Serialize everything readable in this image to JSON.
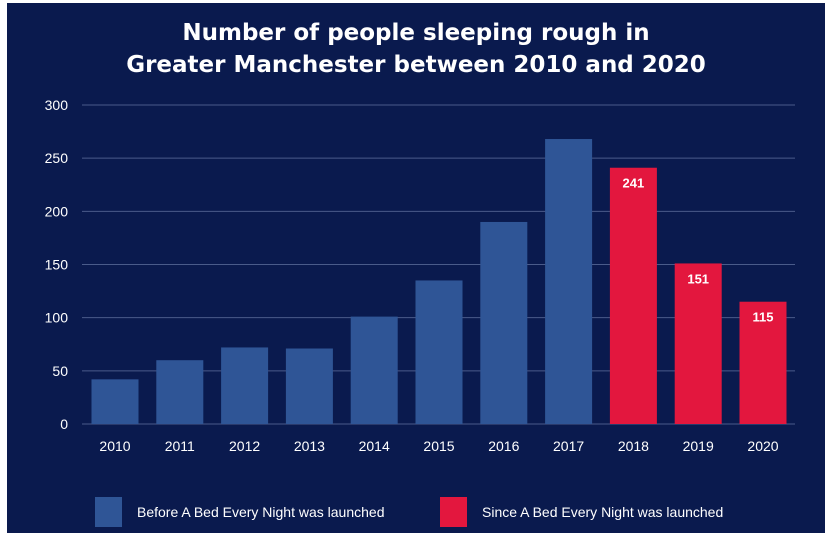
{
  "chart_data": {
    "type": "bar",
    "title_lines": [
      "Number of people sleeping rough in",
      "Greater Manchester between 2010 and 2020"
    ],
    "categories": [
      "2010",
      "2011",
      "2012",
      "2013",
      "2014",
      "2015",
      "2016",
      "2017",
      "2018",
      "2019",
      "2020"
    ],
    "values": [
      42,
      60,
      72,
      71,
      101,
      135,
      190,
      268,
      241,
      151,
      115
    ],
    "data_labels": [
      "",
      "",
      "",
      "",
      "",
      "",
      "",
      "",
      "241",
      "151",
      "115"
    ],
    "bar_groups": [
      "before",
      "before",
      "before",
      "before",
      "before",
      "before",
      "before",
      "before",
      "since",
      "since",
      "since"
    ],
    "ylim": [
      0,
      300
    ],
    "yticks": [
      0,
      50,
      100,
      150,
      200,
      250,
      300
    ],
    "grid": true,
    "legend_position": "bottom",
    "legend": [
      {
        "key": "before",
        "label": "Before A Bed Every Night was launched",
        "color": "#2f5596"
      },
      {
        "key": "since",
        "label": "Since A Bed Every Night was launched",
        "color": "#e3173e"
      }
    ],
    "colors": {
      "background": "#0a1a4e",
      "grid": "#4a5b8a",
      "before": "#2f5596",
      "since": "#e3173e",
      "text": "#ffffff"
    }
  }
}
